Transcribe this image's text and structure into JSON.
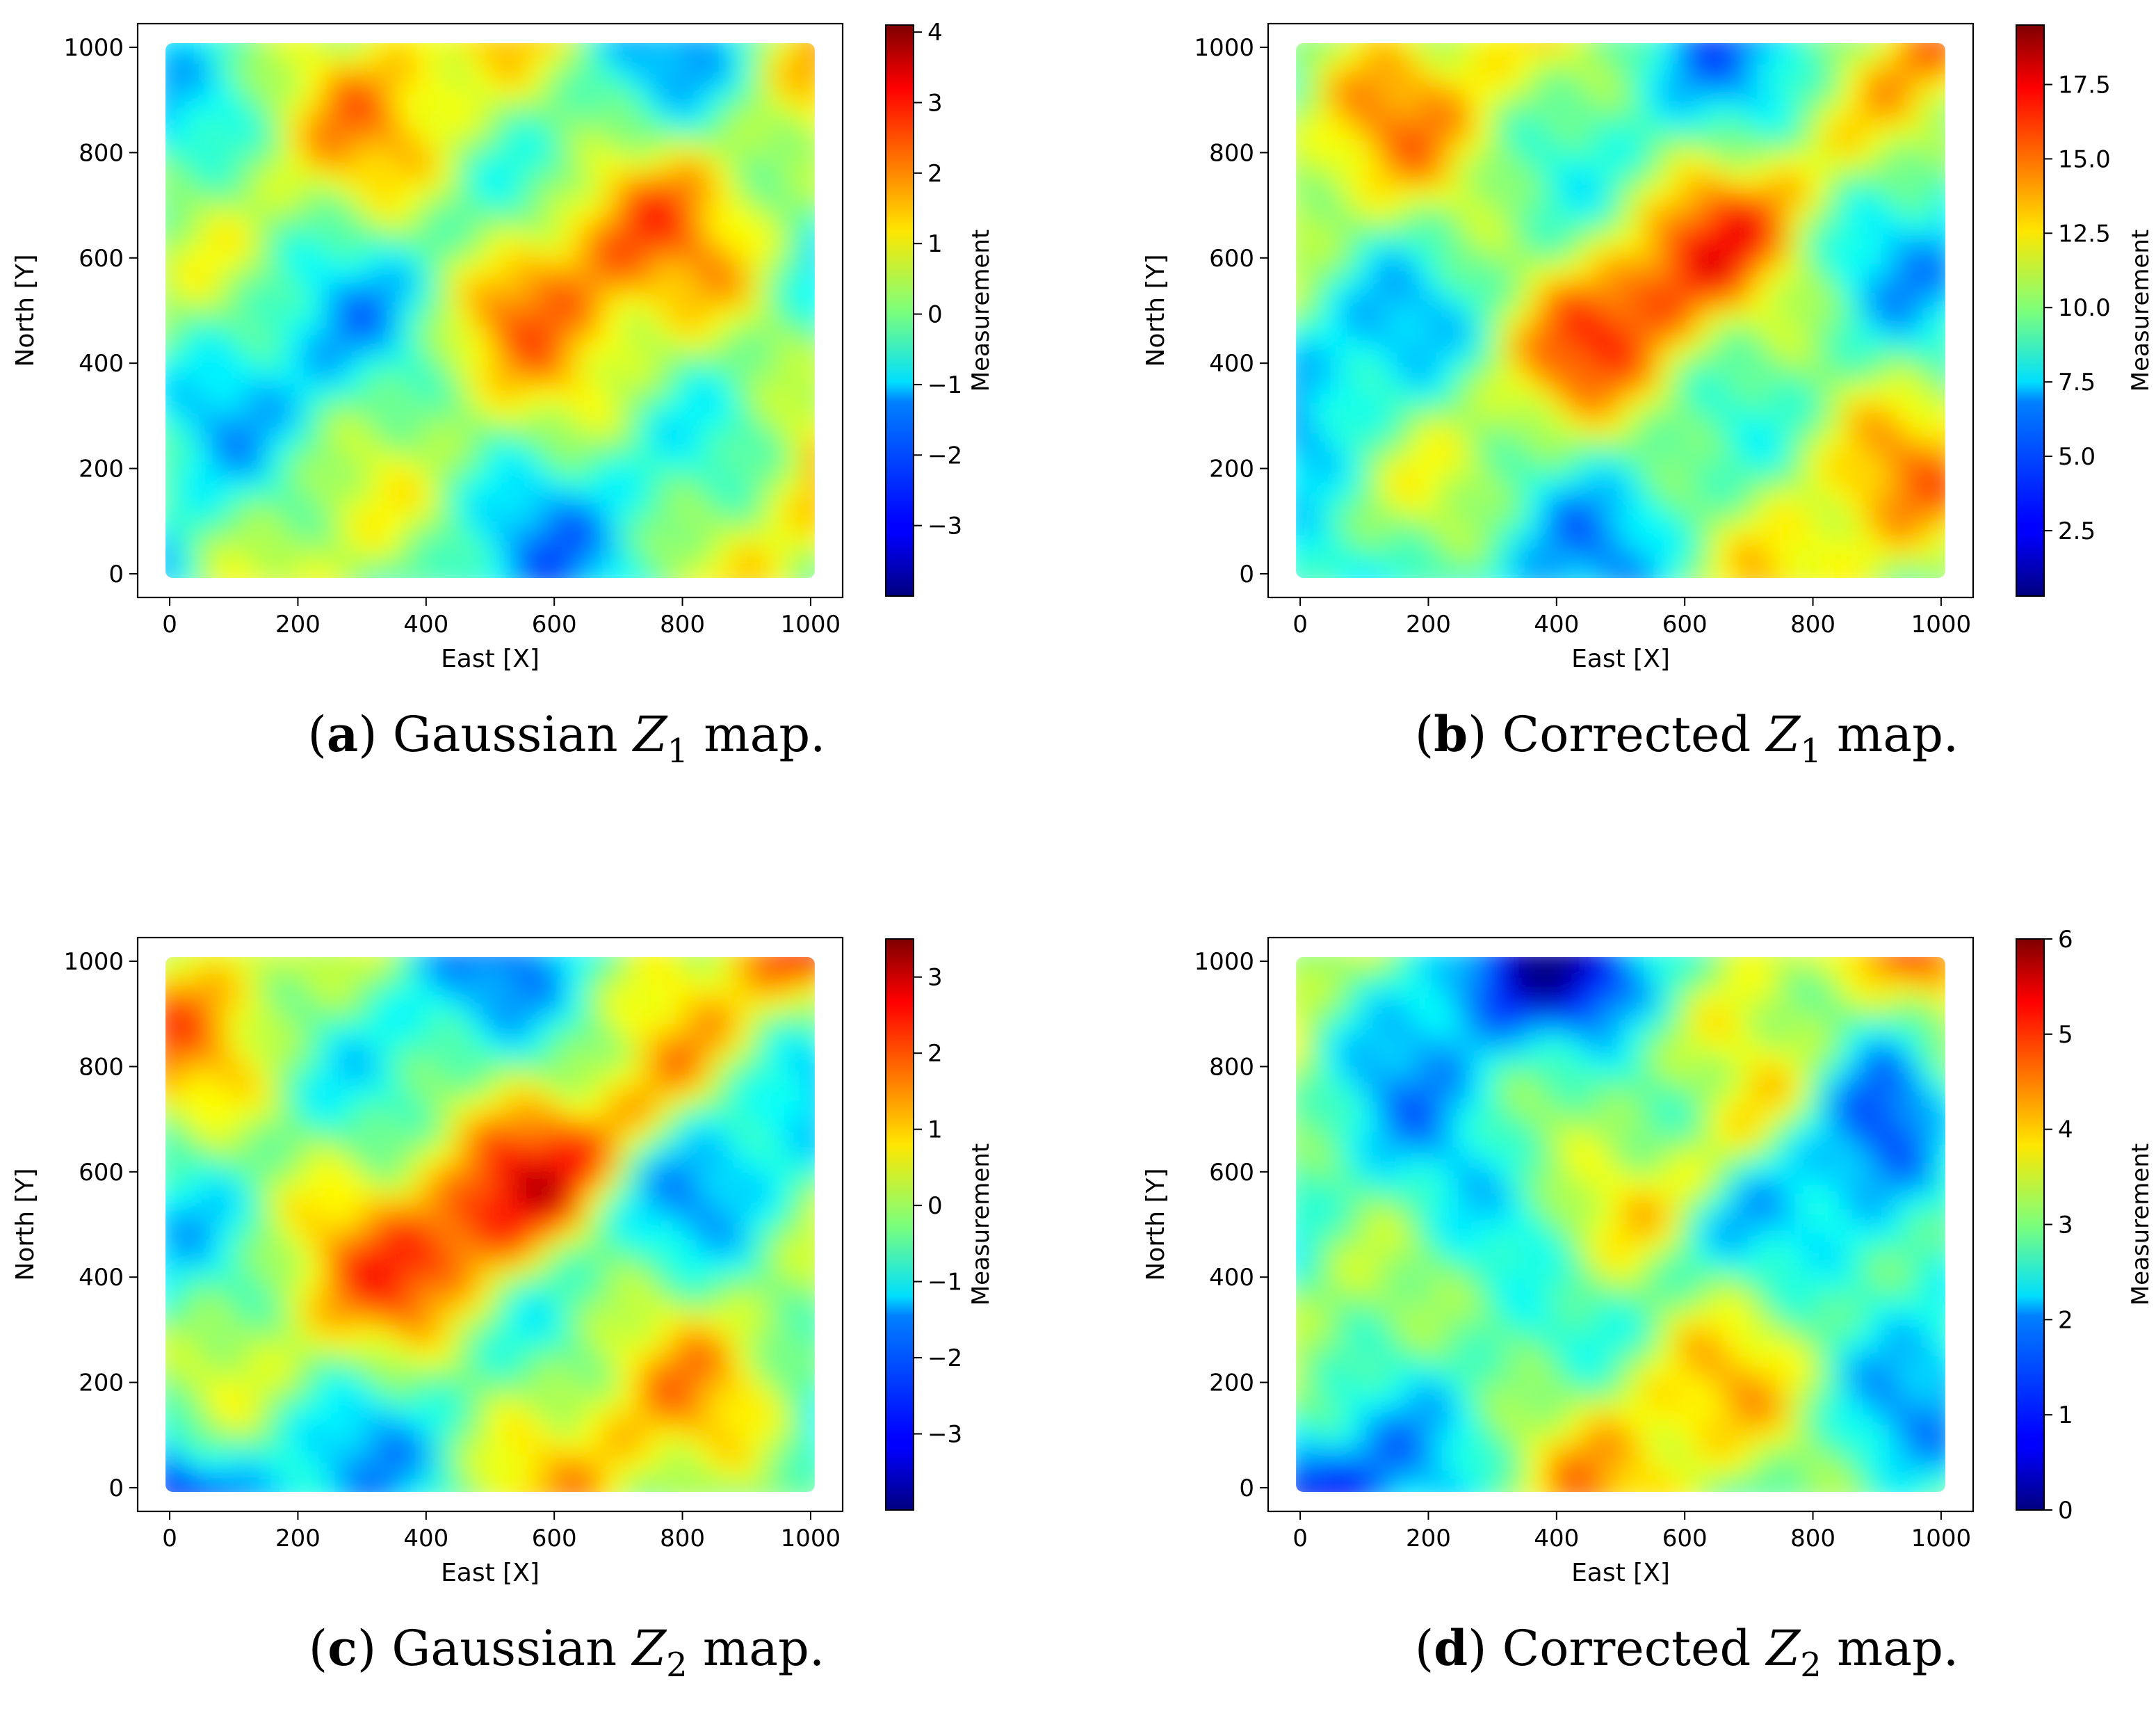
{
  "chart_data": [
    {
      "type": "heatmap",
      "panel_id": "a",
      "caption_letter": "a",
      "caption_pre": "Gaussian",
      "caption_var": "Z",
      "caption_sub": "1",
      "caption_post": "map.",
      "xlabel": "East [X]",
      "ylabel": "North [Y]",
      "colorbar_label": "Measurement",
      "colormap": "jet",
      "xlim": [
        -50,
        1050
      ],
      "ylim": [
        -45,
        1045
      ],
      "xticks": [
        "0",
        "200",
        "400",
        "600",
        "800",
        "1000"
      ],
      "yticks": [
        "0",
        "200",
        "400",
        "600",
        "800",
        "1000"
      ],
      "data_x_range": [
        0,
        1000
      ],
      "data_y_range": [
        0,
        1000
      ],
      "color_range": [
        -4.0,
        4.1
      ],
      "colorbar_ticks": [
        -3,
        -2,
        -1,
        0,
        1,
        2,
        3,
        4
      ],
      "colorbar_tick_labels": [
        "−3",
        "−2",
        "−1",
        "0",
        "1",
        "2",
        "3",
        "4"
      ]
    },
    {
      "type": "heatmap",
      "panel_id": "b",
      "caption_letter": "b",
      "caption_pre": "Corrected",
      "caption_var": "Z",
      "caption_sub": "1",
      "caption_post": "map.",
      "xlabel": "East [X]",
      "ylabel": "North [Y]",
      "colorbar_label": "Measurement",
      "colormap": "jet",
      "xlim": [
        -50,
        1050
      ],
      "ylim": [
        -45,
        1045
      ],
      "xticks": [
        "0",
        "200",
        "400",
        "600",
        "800",
        "1000"
      ],
      "yticks": [
        "0",
        "200",
        "400",
        "600",
        "800",
        "1000"
      ],
      "data_x_range": [
        0,
        1000
      ],
      "data_y_range": [
        0,
        1000
      ],
      "color_range": [
        0.3,
        19.5
      ],
      "colorbar_ticks": [
        2.5,
        5.0,
        7.5,
        10.0,
        12.5,
        15.0,
        17.5
      ],
      "colorbar_tick_labels": [
        "2.5",
        "5.0",
        "7.5",
        "10.0",
        "12.5",
        "15.0",
        "17.5"
      ]
    },
    {
      "type": "heatmap",
      "panel_id": "c",
      "caption_letter": "c",
      "caption_pre": "Gaussian",
      "caption_var": "Z",
      "caption_sub": "2",
      "caption_post": "map.",
      "xlabel": "East [X]",
      "ylabel": "North [Y]",
      "colorbar_label": "Measurement",
      "colormap": "jet",
      "xlim": [
        -50,
        1050
      ],
      "ylim": [
        -45,
        1045
      ],
      "xticks": [
        "0",
        "200",
        "400",
        "600",
        "800",
        "1000"
      ],
      "yticks": [
        "0",
        "200",
        "400",
        "600",
        "800",
        "1000"
      ],
      "data_x_range": [
        0,
        1000
      ],
      "data_y_range": [
        0,
        1000
      ],
      "color_range": [
        -4.0,
        3.5
      ],
      "colorbar_ticks": [
        -3,
        -2,
        -1,
        0,
        1,
        2,
        3
      ],
      "colorbar_tick_labels": [
        "−3",
        "−2",
        "−1",
        "0",
        "1",
        "2",
        "3"
      ]
    },
    {
      "type": "heatmap",
      "panel_id": "d",
      "caption_letter": "d",
      "caption_pre": "Corrected",
      "caption_var": "Z",
      "caption_sub": "2",
      "caption_post": "map.",
      "xlabel": "East [X]",
      "ylabel": "North [Y]",
      "colorbar_label": "Measurement",
      "colormap": "jet",
      "xlim": [
        -50,
        1050
      ],
      "ylim": [
        -45,
        1045
      ],
      "xticks": [
        "0",
        "200",
        "400",
        "600",
        "800",
        "1000"
      ],
      "yticks": [
        "0",
        "200",
        "400",
        "600",
        "800",
        "1000"
      ],
      "data_x_range": [
        0,
        1000
      ],
      "data_y_range": [
        0,
        1000
      ],
      "color_range": [
        0,
        6
      ],
      "colorbar_ticks": [
        0,
        1,
        2,
        3,
        4,
        5,
        6
      ],
      "colorbar_tick_labels": [
        "0",
        "1",
        "2",
        "3",
        "4",
        "5",
        "6"
      ]
    }
  ]
}
